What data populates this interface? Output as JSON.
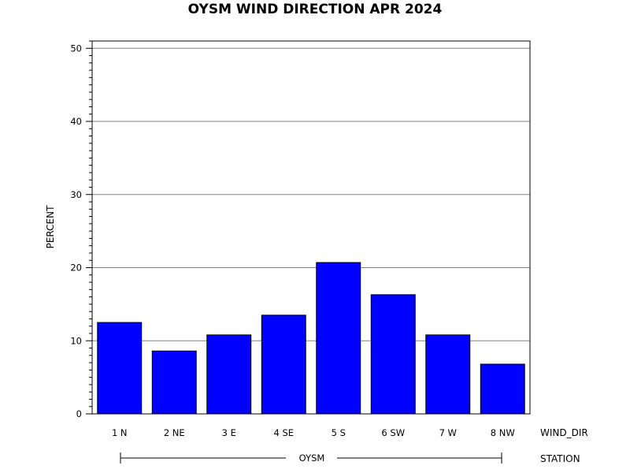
{
  "chart_data": {
    "type": "bar",
    "title": "OYSM WIND DIRECTION APR 2024",
    "ylabel": "PERCENT",
    "xlabel": "WIND_DIR",
    "group_axis_label": "STATION",
    "group_label": "OYSM",
    "categories": [
      "1 N",
      "2 NE",
      "3 E",
      "4 SE",
      "5 S",
      "6 SW",
      "7 W",
      "8 NW"
    ],
    "values": [
      12.5,
      8.6,
      10.8,
      13.5,
      20.7,
      16.3,
      10.8,
      6.8
    ],
    "yticks": [
      "0",
      "10",
      "20",
      "30",
      "40",
      "50"
    ],
    "ylim": [
      0,
      51
    ],
    "grid": true,
    "colors": {
      "bar_fill": "#0000ff",
      "bar_stroke": "#000000",
      "grid": "#808080",
      "axis": "#000000"
    }
  }
}
